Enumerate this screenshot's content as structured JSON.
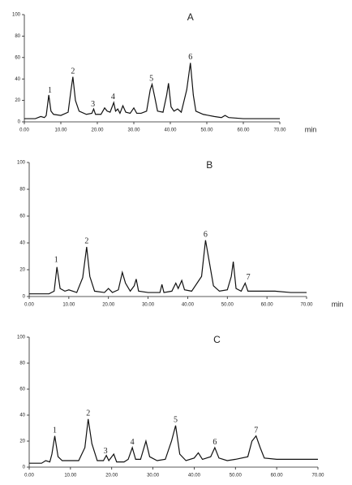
{
  "chart_data": [
    {
      "type": "line",
      "title": "A",
      "x_label": "min",
      "color": "#111111",
      "x": [
        0,
        3,
        4.5,
        5.5,
        6,
        6.7,
        7.3,
        8,
        10,
        12,
        12.8,
        13.3,
        14,
        15,
        17,
        18.5,
        19,
        19.5,
        21,
        22,
        22.7,
        23.5,
        24.5,
        25,
        25.6,
        26.2,
        27,
        27.8,
        29,
        30,
        30.8,
        32,
        33.5,
        34.5,
        35,
        35.8,
        36.5,
        38,
        39,
        39.5,
        40.2,
        41,
        42,
        43,
        44.5,
        45.5,
        46.3,
        47,
        49,
        52,
        54,
        55,
        56,
        60,
        65,
        70
      ],
      "values": [
        3,
        3,
        5,
        4,
        6,
        25,
        10,
        7,
        6,
        9,
        30,
        42,
        20,
        10,
        7,
        8,
        12,
        7,
        7,
        13,
        10,
        9,
        18,
        10,
        12,
        8,
        15,
        9,
        8,
        13,
        8,
        8,
        10,
        30,
        35,
        22,
        10,
        9,
        25,
        36,
        14,
        10,
        12,
        9,
        30,
        55,
        25,
        10,
        7,
        5,
        4,
        6,
        4,
        3,
        3,
        3
      ],
      "annotations": [
        {
          "text": "1",
          "x": 7,
          "y": 29
        },
        {
          "text": "2",
          "x": 13.3,
          "y": 47
        },
        {
          "text": "3",
          "x": 18.8,
          "y": 16
        },
        {
          "text": "4",
          "x": 24.3,
          "y": 23
        },
        {
          "text": "5",
          "x": 34.8,
          "y": 40
        },
        {
          "text": "6",
          "x": 45.5,
          "y": 60
        }
      ],
      "xlim": [
        0,
        70
      ],
      "ylim": [
        0,
        100
      ],
      "xticks": [
        {
          "value": 0,
          "label": "0.00"
        },
        {
          "value": 10,
          "label": "10.00"
        },
        {
          "value": 20,
          "label": "20.00"
        },
        {
          "value": 30,
          "label": "30.00"
        },
        {
          "value": 40,
          "label": "40.00"
        },
        {
          "value": 50,
          "label": "50.00"
        },
        {
          "value": 60,
          "label": "60.00"
        },
        {
          "value": 70,
          "label": "70.00"
        }
      ],
      "yticks": [
        0,
        20,
        40,
        60,
        80,
        100
      ]
    },
    {
      "type": "line",
      "title": "B",
      "x_label": "min",
      "color": "#111111",
      "x": [
        0,
        5,
        6.3,
        7,
        7.8,
        9,
        10,
        12,
        13.5,
        14.5,
        15.3,
        16.5,
        19,
        20,
        21,
        22.5,
        23.5,
        24.3,
        25.5,
        26.5,
        27,
        27.6,
        30,
        33,
        33.5,
        34,
        36,
        37,
        37.6,
        38.5,
        39.2,
        41,
        43.5,
        44.5,
        45.5,
        46.5,
        48,
        50,
        51,
        51.5,
        52.2,
        53.5,
        54.5,
        55.2,
        58,
        62,
        66,
        70
      ],
      "values": [
        2,
        2,
        4,
        22,
        6,
        4,
        5,
        3,
        14,
        37,
        15,
        4,
        3,
        6,
        3,
        5,
        18,
        10,
        4,
        8,
        13,
        4,
        3,
        3,
        9,
        3,
        4,
        10,
        6,
        12,
        5,
        4,
        15,
        42,
        25,
        8,
        4,
        5,
        15,
        26,
        6,
        4,
        10,
        4,
        4,
        4,
        3,
        3
      ],
      "annotations": [
        {
          "text": "1",
          "x": 6.8,
          "y": 27
        },
        {
          "text": "2",
          "x": 14.5,
          "y": 41
        },
        {
          "text": "6",
          "x": 44.5,
          "y": 46
        },
        {
          "text": "7",
          "x": 55.3,
          "y": 14
        }
      ],
      "xlim": [
        0,
        70
      ],
      "ylim": [
        0,
        100
      ],
      "xticks": [
        {
          "value": 0,
          "label": "0.00"
        },
        {
          "value": 10,
          "label": "10.00"
        },
        {
          "value": 20,
          "label": "20.00"
        },
        {
          "value": 30,
          "label": "30.00"
        },
        {
          "value": 40,
          "label": "40.00"
        },
        {
          "value": 50,
          "label": "50.00"
        },
        {
          "value": 60,
          "label": "60.00"
        },
        {
          "value": 70,
          "label": "70.00"
        }
      ],
      "yticks": [
        0,
        20,
        40,
        60,
        80,
        100
      ]
    },
    {
      "type": "line",
      "title": "C",
      "color": "#111111",
      "x": [
        0,
        3,
        4,
        5,
        5.5,
        6.2,
        7,
        8,
        10,
        12,
        13.5,
        14.3,
        15.2,
        16.5,
        18,
        18.7,
        19.3,
        20.5,
        21.2,
        23,
        24,
        25,
        25.8,
        27,
        28.3,
        29.2,
        31,
        33,
        34.5,
        35.5,
        36.5,
        38,
        40,
        41,
        42,
        44,
        45,
        46,
        48,
        50,
        53,
        54,
        55,
        56,
        57,
        60,
        65,
        70
      ],
      "values": [
        3,
        3,
        5,
        4,
        10,
        24,
        8,
        5,
        5,
        5,
        15,
        37,
        18,
        5,
        5,
        9,
        5,
        10,
        4,
        4,
        6,
        15,
        6,
        6,
        20,
        8,
        5,
        6,
        20,
        32,
        10,
        5,
        7,
        11,
        6,
        8,
        15,
        7,
        5,
        6,
        8,
        20,
        24,
        15,
        7,
        6,
        6,
        6
      ],
      "annotations": [
        {
          "text": "1",
          "x": 6.2,
          "y": 28
        },
        {
          "text": "2",
          "x": 14.3,
          "y": 41
        },
        {
          "text": "3",
          "x": 18.5,
          "y": 12
        },
        {
          "text": "4",
          "x": 25,
          "y": 19
        },
        {
          "text": "5",
          "x": 35.5,
          "y": 36
        },
        {
          "text": "6",
          "x": 45,
          "y": 19
        },
        {
          "text": "7",
          "x": 55,
          "y": 28
        }
      ],
      "xlim": [
        0,
        70
      ],
      "ylim": [
        0,
        100
      ],
      "xticks": [
        {
          "value": 0,
          "label": "0.00"
        },
        {
          "value": 10,
          "label": "10.00"
        },
        {
          "value": 20,
          "label": "20.00"
        },
        {
          "value": 30,
          "label": "30.00"
        },
        {
          "value": 40,
          "label": "40.00"
        },
        {
          "value": 50,
          "label": "50.00"
        },
        {
          "value": 60,
          "label": "60.00"
        },
        {
          "value": 70,
          "label": "70.00"
        }
      ],
      "yticks": [
        0,
        20,
        40,
        60,
        80,
        100
      ]
    }
  ]
}
